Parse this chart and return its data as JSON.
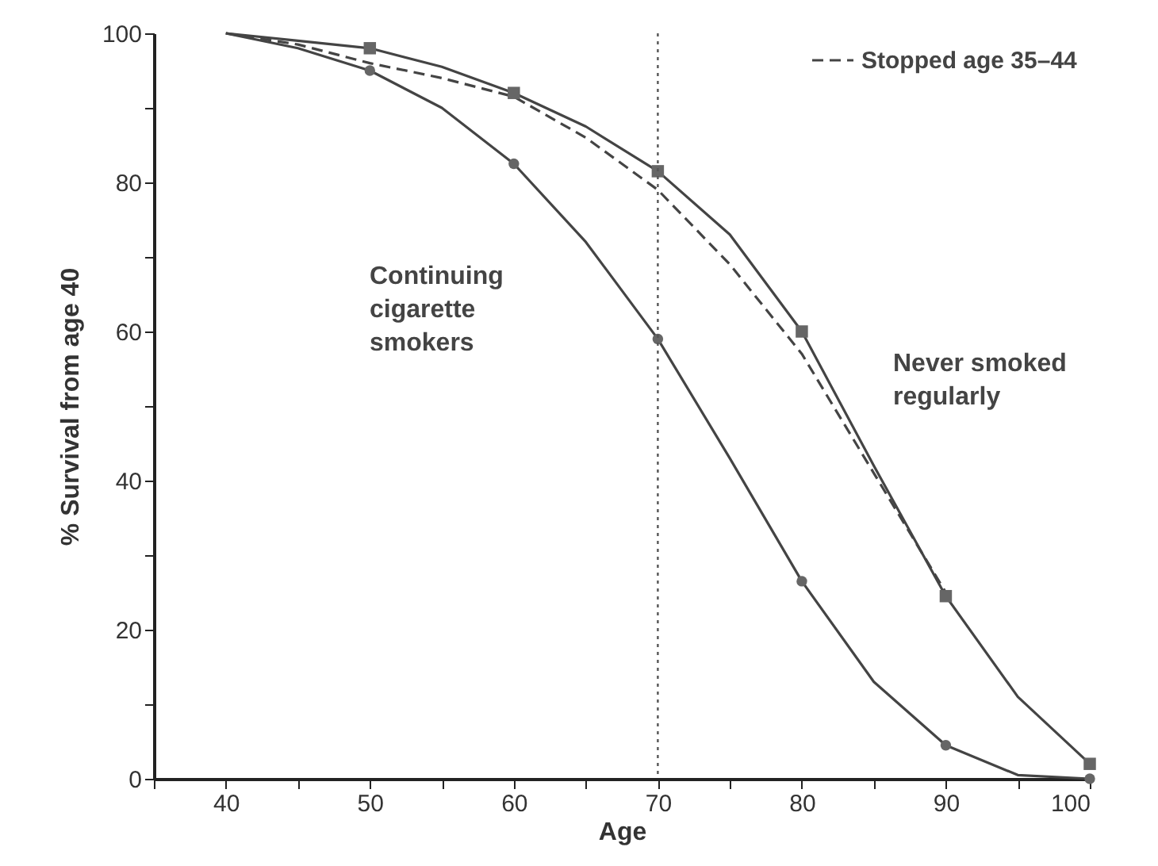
{
  "chart_data": {
    "type": "line",
    "xlabel": "Age",
    "ylabel": "% Survival from age 40",
    "xlim": [
      35,
      100
    ],
    "ylim": [
      0,
      100
    ],
    "xticks": [
      {
        "value": 35,
        "label": null
      },
      40,
      {
        "value": 45,
        "label": null
      },
      50,
      {
        "value": 55,
        "label": null
      },
      60,
      {
        "value": 65,
        "label": null
      },
      70,
      {
        "value": 75,
        "label": null
      },
      80,
      {
        "value": 85,
        "label": null
      },
      90,
      {
        "value": 95,
        "label": null
      },
      100
    ],
    "yticks": [
      0,
      {
        "value": 10,
        "label": null
      },
      20,
      {
        "value": 30,
        "label": null
      },
      40,
      {
        "value": 50,
        "label": null
      },
      60,
      {
        "value": 70,
        "label": null
      },
      80,
      {
        "value": 90,
        "label": null
      },
      100
    ],
    "grid": false,
    "legend": "top right",
    "series": [
      {
        "color": "#444444",
        "line_style": "solid",
        "x": [
          40,
          45,
          50,
          55,
          60,
          65,
          70,
          75,
          80,
          85,
          90,
          95,
          100
        ],
        "values": [
          100,
          99,
          98,
          95.5,
          92,
          87.5,
          81.5,
          73,
          60,
          42,
          24.5,
          11,
          2
        ]
      },
      {
        "name": "Stopped age 35–44",
        "color": "#444444",
        "line_style": "dashed",
        "x": [
          40,
          45,
          50,
          55,
          60,
          65,
          70,
          75,
          80,
          85,
          90
        ],
        "values": [
          100,
          98.5,
          96,
          94,
          91.5,
          86,
          79,
          69,
          57,
          41,
          25
        ]
      },
      {
        "color": "#444444",
        "line_style": "solid",
        "x": [
          40,
          45,
          50,
          55,
          60,
          65,
          70,
          75,
          80,
          85,
          90,
          95,
          100
        ],
        "values": [
          100,
          98,
          95,
          90,
          82.5,
          72,
          59,
          43,
          26.5,
          13,
          4.5,
          0.5,
          0
        ]
      },
      {
        "type": "scatter",
        "marker": "square",
        "color": "#666666",
        "x": [
          50,
          60,
          70,
          80,
          90,
          100
        ],
        "values": [
          98,
          92,
          81.5,
          60,
          24.5,
          2
        ]
      },
      {
        "type": "scatter",
        "marker": "circle",
        "color": "#666666",
        "x": [
          50,
          60,
          70,
          80,
          90,
          100
        ],
        "values": [
          95,
          82.5,
          59,
          26.5,
          4.5,
          0
        ]
      }
    ],
    "ref_lines": [
      {
        "axis": "x",
        "value": 70,
        "line_style": "dotted",
        "color": "#555555"
      }
    ],
    "annotations": [
      "Continuing\ncigarette\nsmokers",
      "Never smoked\nregularly"
    ]
  }
}
